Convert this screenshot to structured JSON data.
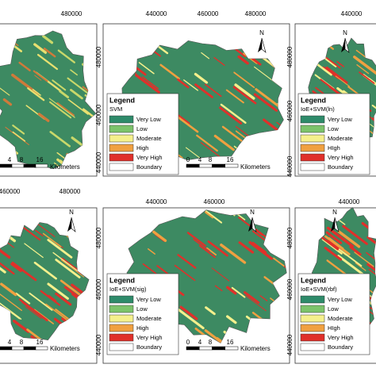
{
  "panels": [
    {
      "top_ticks": [
        "480000"
      ],
      "left_ticks": [],
      "legend": null,
      "scale": [
        "4",
        "8",
        "16"
      ],
      "units": "Kilometers",
      "north": null
    },
    {
      "top_ticks": [
        "440000",
        "460000",
        "480000"
      ],
      "left_ticks": [
        "480000",
        "460000",
        "440000"
      ],
      "legend": {
        "title": "Legend",
        "model": "SVM",
        "items": [
          "Very Low",
          "Low",
          "Moderate",
          "High",
          "Very High",
          "Boundary"
        ]
      },
      "scale": [
        "0",
        "4",
        "8",
        "16"
      ],
      "units": "Kilometers",
      "north": "N"
    },
    {
      "top_ticks": [
        "440000"
      ],
      "left_ticks": [
        "480000",
        "460000",
        "440000"
      ],
      "legend": {
        "title": "Legend",
        "model": "IoE+SVM(ln)",
        "items": [
          "Very Low",
          "Low",
          "Moderate",
          "HIgh",
          "Very High",
          "Boundary"
        ]
      },
      "scale": [],
      "units": null,
      "north": "N"
    },
    {
      "top_ticks": [
        "460000",
        "480000"
      ],
      "left_ticks": [],
      "legend": null,
      "scale": [
        "4",
        "8",
        "16"
      ],
      "units": "Kilometers",
      "north": "N"
    },
    {
      "top_ticks": [
        "440000",
        "460000"
      ],
      "left_ticks": [
        "480000",
        "460000",
        "440000"
      ],
      "legend": {
        "title": "Legend",
        "model": "IoE+SVM(sig)",
        "items": [
          "Very Low",
          "Low",
          "Moderate",
          "High",
          "Very High",
          "Boundary"
        ]
      },
      "scale": [
        "0",
        "4",
        "8",
        "16"
      ],
      "units": "Kilometers",
      "north": "N"
    },
    {
      "top_ticks": [
        "440000"
      ],
      "left_ticks": [
        "480000",
        "460000",
        "440000"
      ],
      "legend": {
        "title": "Legend",
        "model": "IoE+SVM(rbf)",
        "items": [
          "Very Low",
          "Low",
          "Moderate",
          "HIgh",
          "Very High",
          "Boundary"
        ]
      },
      "scale": [],
      "units": null,
      "north": "N"
    }
  ]
}
